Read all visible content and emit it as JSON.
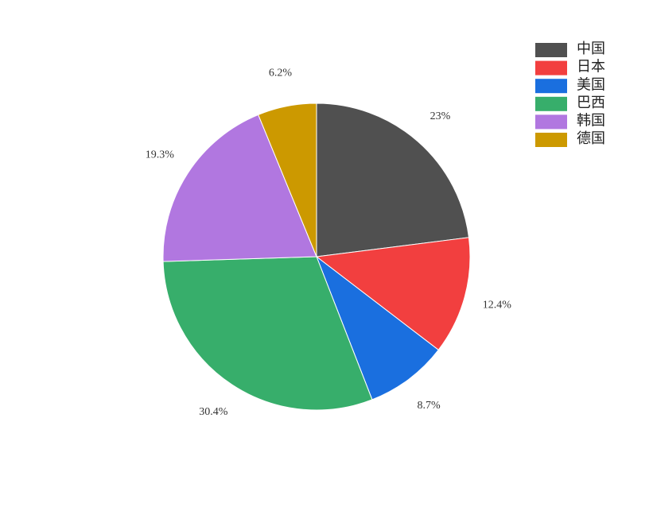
{
  "chart_data": {
    "type": "pie",
    "categories": [
      "中国",
      "日本",
      "美国",
      "巴西",
      "韩国",
      "德国"
    ],
    "values": [
      23,
      12.4,
      8.7,
      30.4,
      19.3,
      6.2
    ],
    "value_labels": [
      "23%",
      "12.4%",
      "8.7%",
      "30.4%",
      "19.3%",
      "6.2%"
    ],
    "colors": [
      "#505050",
      "#f23f3f",
      "#1a6fdf",
      "#37ae6b",
      "#b177e0",
      "#cc9900"
    ],
    "legend": "top-right"
  }
}
